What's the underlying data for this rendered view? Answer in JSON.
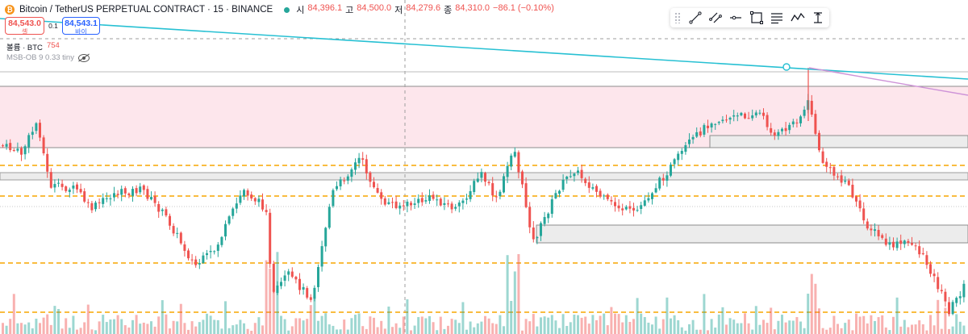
{
  "header": {
    "coin_glyph": "₿",
    "title": "Bitcoin / TetherUS PERPETUAL CONTRACT · 15 · BINANCE",
    "ohlc": [
      {
        "label": "시",
        "value": "84,396.1"
      },
      {
        "label": "고",
        "value": "84,500.0"
      },
      {
        "label": "저",
        "value": "84,279.6"
      },
      {
        "label": "종",
        "value": "84,310.0"
      }
    ],
    "change": "−86.1 (−0.10%)"
  },
  "trade": {
    "sell_price": "84,543.0",
    "sell_label": "셀",
    "spread": "0.1",
    "buy_price": "84,543.1",
    "buy_label": "바이"
  },
  "indicators": [
    {
      "name": "볼륨 · BTC",
      "value": "754"
    },
    {
      "name": "MSB-OB 9 0.33 tiny"
    }
  ],
  "drawing_toolbar": {
    "tools": [
      "trend-line-icon",
      "parallel-channel-icon",
      "horizontal-ray-icon",
      "rectangle-icon",
      "text-lines-icon",
      "path-icon",
      "price-range-icon"
    ]
  },
  "colors": {
    "up": "#26a69a",
    "down": "#ef5350",
    "trendline": "#27c0d3",
    "violet_line": "#ce93d8",
    "zone_fill": "#fce4ec",
    "orange_level": "#f7a600"
  }
}
